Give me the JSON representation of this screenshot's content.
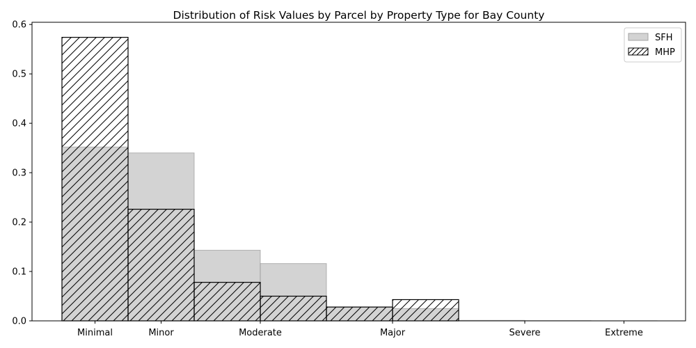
{
  "chart_data": {
    "type": "bar",
    "title": "Distribution of Risk Values by Parcel by Property Type for Bay County",
    "xlabel": "",
    "ylabel": "",
    "ylim": [
      0,
      0.6
    ],
    "y_ticks": [
      "0.0",
      "0.1",
      "0.2",
      "0.3",
      "0.4",
      "0.5",
      "0.6"
    ],
    "x_ticks": [
      {
        "label": "Minimal",
        "x": 0.5
      },
      {
        "label": "Minor",
        "x": 1.5
      },
      {
        "label": "Moderate",
        "x": 3.0
      },
      {
        "label": "Major",
        "x": 5.0
      },
      {
        "label": "Severe",
        "x": 7.0
      },
      {
        "label": "Extreme",
        "x": 8.5
      }
    ],
    "bin_edges": [
      0,
      1,
      2,
      3,
      4,
      5,
      6,
      7,
      8,
      9
    ],
    "legend_position": "top-right",
    "grid": false,
    "series": [
      {
        "name": "SFH",
        "style": "filled-gray",
        "color": "#d3d3d3",
        "values": [
          0.352,
          0.34,
          0.143,
          0.116,
          0.028,
          0.025,
          0.001,
          0.0005,
          0.0002
        ]
      },
      {
        "name": "MHP",
        "style": "hatched-outline",
        "color": "#000000",
        "values": [
          0.574,
          0.226,
          0.078,
          0.05,
          0.028,
          0.043,
          0.0,
          0.0,
          0.0
        ]
      }
    ]
  }
}
